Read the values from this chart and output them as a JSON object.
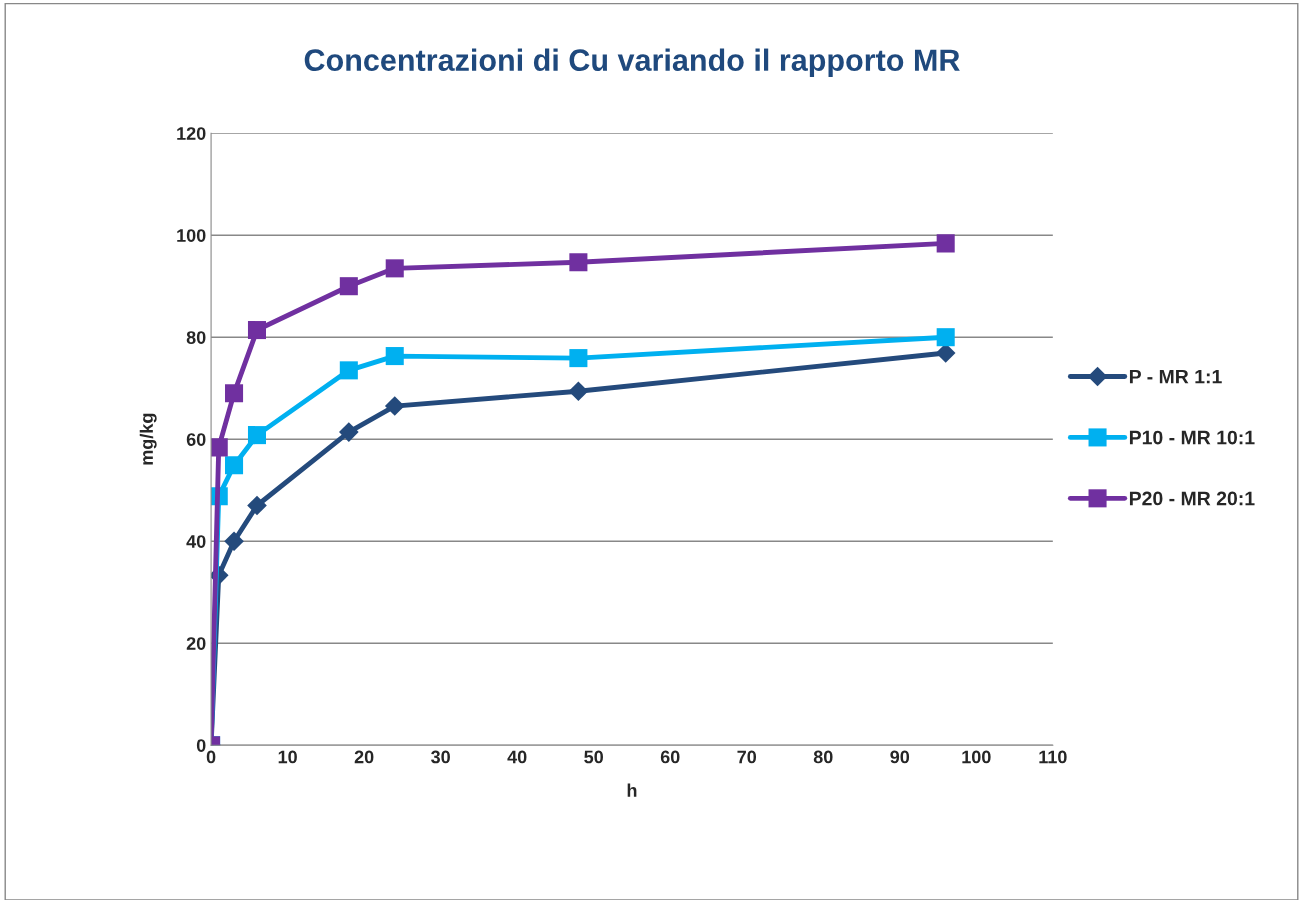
{
  "chart_data": {
    "type": "line",
    "title": "Concentrazioni di Cu variando il rapporto MR",
    "xlabel": "h",
    "ylabel": "mg/kg",
    "x": [
      0,
      1,
      3,
      6,
      18,
      24,
      48,
      96
    ],
    "series": [
      {
        "name": "P - MR 1:1",
        "color": "#244a7c",
        "marker": "diamond",
        "values": [
          0,
          33.3,
          40,
          47,
          61.4,
          66.5,
          69.4,
          76.9
        ]
      },
      {
        "name": "P10 - MR 10:1",
        "color": "#00b0f0",
        "marker": "square",
        "values": [
          0,
          48.8,
          54.9,
          60.8,
          73.5,
          76.3,
          75.9,
          80
        ]
      },
      {
        "name": "P20 - MR 20:1",
        "color": "#7030a0",
        "marker": "square",
        "values": [
          0,
          58.4,
          69,
          81.4,
          90,
          93.5,
          94.7,
          98.4
        ]
      }
    ],
    "xlim": [
      0,
      110
    ],
    "xticks": [
      0,
      10,
      20,
      30,
      40,
      50,
      60,
      70,
      80,
      90,
      100,
      110
    ],
    "ylim": [
      0,
      120
    ],
    "yticks": [
      0,
      20,
      40,
      60,
      80,
      100,
      120
    ],
    "grid": "y",
    "legend": "right",
    "line_style": "solid"
  }
}
